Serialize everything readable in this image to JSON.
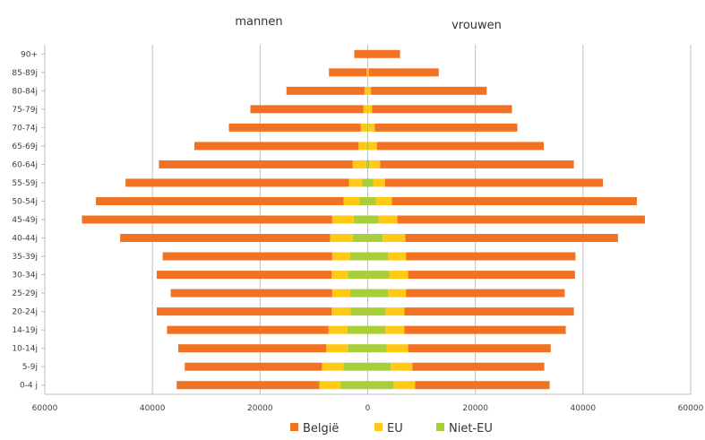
{
  "chart_data": {
    "type": "bar",
    "orientation": "horizontal",
    "layout": "population-pyramid",
    "side_labels": {
      "left": "mannen",
      "right": "vrouwen"
    },
    "categories": [
      "0-4 j",
      "5-9j",
      "10-14j",
      "14-19j",
      "20-24j",
      "25-29j",
      "30-34j",
      "35-39j",
      "40-44j",
      "45-49j",
      "50-54j",
      "55-59j",
      "60-64j",
      "65-69j",
      "70-74j",
      "75-79j",
      "80-84j",
      "85-89j",
      "90+"
    ],
    "xlim": [
      -60000,
      60000
    ],
    "x_tick_labels": [
      "60000",
      "40000",
      "20000",
      "0",
      "20000",
      "40000",
      "60000"
    ],
    "grid": true,
    "legend_position": "bottom",
    "series": [
      {
        "name": "België",
        "color": "#F07222",
        "men": [
          26500,
          25500,
          27500,
          30000,
          32500,
          30000,
          32500,
          31500,
          39000,
          46500,
          46000,
          41500,
          36000,
          30500,
          24500,
          21000,
          14500,
          7000,
          2500
        ],
        "women": [
          25000,
          24500,
          26500,
          30000,
          31500,
          29500,
          31000,
          31500,
          39500,
          46000,
          45500,
          40500,
          36000,
          31000,
          26500,
          26000,
          21500,
          13000,
          6000
        ]
      },
      {
        "name": "EU",
        "color": "#FFC914",
        "men": [
          4000,
          4000,
          4000,
          3500,
          3500,
          3300,
          3000,
          3300,
          4200,
          4000,
          3000,
          2500,
          2500,
          1500,
          1200,
          800,
          600,
          200,
          0
        ],
        "women": [
          4000,
          4000,
          4000,
          3500,
          3500,
          3300,
          3500,
          3300,
          4200,
          3500,
          3000,
          2200,
          2000,
          1500,
          1200,
          800,
          600,
          200,
          0
        ]
      },
      {
        "name": "Niet-EU",
        "color": "#A8CF39",
        "men": [
          5000,
          4500,
          3700,
          3800,
          3200,
          3300,
          3700,
          3300,
          2800,
          2600,
          1500,
          1000,
          300,
          200,
          100,
          0,
          0,
          0,
          0
        ],
        "women": [
          4800,
          4300,
          3500,
          3300,
          3300,
          3800,
          4000,
          3800,
          2800,
          2000,
          1500,
          1000,
          300,
          200,
          100,
          0,
          0,
          0,
          0
        ]
      }
    ]
  }
}
